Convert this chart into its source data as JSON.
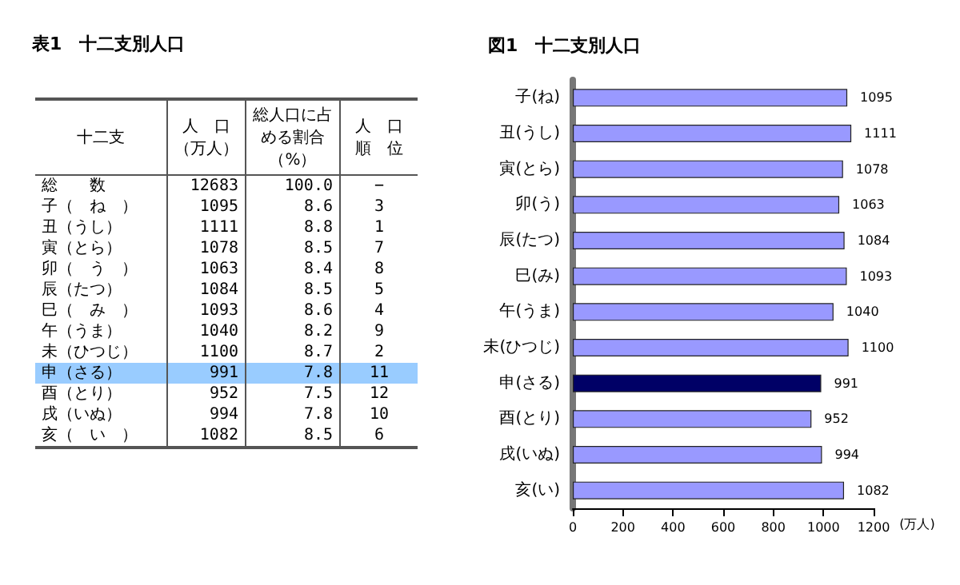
{
  "chart_data": [
    {
      "type": "other",
      "title": "表1　十二支別人口",
      "ylabel": "十二支",
      "data_labels": true,
      "categories": [
        "総　　数",
        "子（　ね　）",
        "丑（うし）",
        "寅（とら）",
        "卯（　う　）",
        "辰（たつ）",
        "巳（　み　）",
        "午（うま）",
        "未（ひつじ）",
        "申（さる）",
        "酉（とり）",
        "戌（いぬ）",
        "亥（　い　）"
      ],
      "colors": [
        null,
        null,
        null,
        null,
        null,
        null,
        null,
        null,
        null,
        "#99ccff",
        null,
        null,
        null
      ],
      "series": [
        {
          "name": "人　口（万人）",
          "values": [
            12683,
            1095,
            1111,
            1078,
            1063,
            1084,
            1093,
            1040,
            1100,
            991,
            952,
            994,
            1082
          ]
        },
        {
          "name": "総人口に占める割合（%）",
          "values": [
            100.0,
            8.6,
            8.8,
            8.5,
            8.4,
            8.5,
            8.6,
            8.2,
            8.7,
            7.8,
            7.5,
            7.8,
            8.5
          ],
          "value_labels": [
            "100.0",
            "8.6",
            "8.8",
            "8.5",
            "8.4",
            "8.5",
            "8.6",
            "8.2",
            "8.7",
            "7.8",
            "7.5",
            "7.8",
            "8.5"
          ]
        },
        {
          "name": "人　口順　位",
          "values": [
            null,
            3,
            1,
            7,
            8,
            5,
            4,
            9,
            2,
            11,
            12,
            10,
            6
          ],
          "value_labels": [
            "−",
            "3",
            "1",
            "7",
            "8",
            "5",
            "4",
            "9",
            "2",
            "11",
            "12",
            "10",
            "6"
          ]
        }
      ]
    },
    {
      "type": "bar",
      "orientation": "horizontal",
      "title": "図1　十二支別人口",
      "xlabel": "(万人)",
      "categories": [
        "子(ね)",
        "丑(うし)",
        "寅(とら)",
        "卯(う)",
        "辰(たつ)",
        "巳(み)",
        "午(うま)",
        "未(ひつじ)",
        "申(さる)",
        "酉(とり)",
        "戌(いぬ)",
        "亥(い)"
      ],
      "values": [
        1095,
        1111,
        1078,
        1063,
        1084,
        1093,
        1040,
        1100,
        991,
        952,
        994,
        1082
      ],
      "colors": [
        "#9999ff",
        "#9999ff",
        "#9999ff",
        "#9999ff",
        "#9999ff",
        "#9999ff",
        "#9999ff",
        "#9999ff",
        "#000066",
        "#9999ff",
        "#9999ff",
        "#9999ff"
      ],
      "xlim": [
        0,
        1200
      ],
      "xticks": [
        0,
        200,
        400,
        600,
        800,
        1000,
        1200
      ],
      "data_labels": true,
      "grid": false
    }
  ]
}
